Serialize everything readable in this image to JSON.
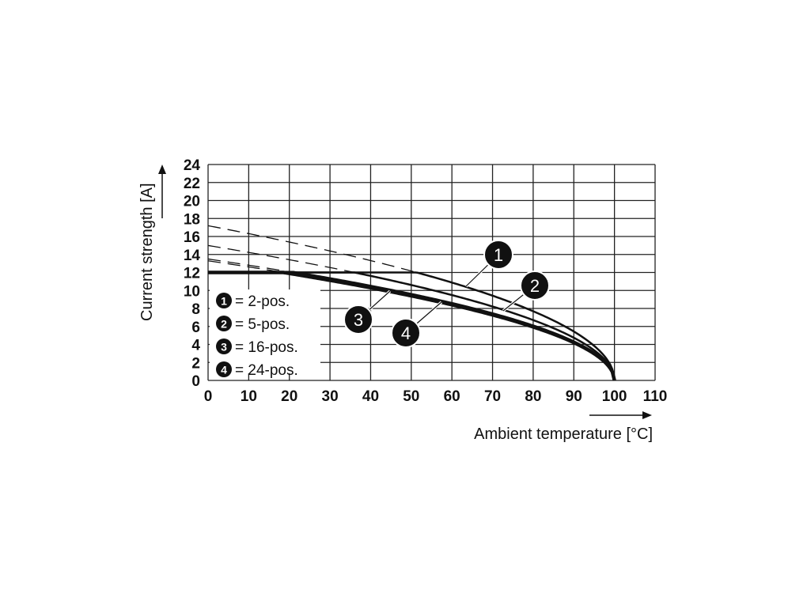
{
  "chart_data": {
    "type": "line",
    "xlabel": "Ambient temperature [°C]",
    "ylabel": "Current strength [A]",
    "xlim": [
      0,
      110
    ],
    "ylim": [
      0,
      24
    ],
    "xticks": [
      "0",
      "10",
      "20",
      "30",
      "40",
      "50",
      "60",
      "70",
      "80",
      "90",
      "100",
      "110"
    ],
    "yticks": [
      "0",
      "2",
      "4",
      "6",
      "8",
      "10",
      "12",
      "14",
      "16",
      "18",
      "20",
      "22",
      "24"
    ],
    "grid": true,
    "max_current": 12,
    "x": [
      0,
      10,
      20,
      30,
      40,
      50,
      60,
      70,
      80,
      90,
      95,
      100
    ],
    "series": [
      {
        "marker": "1",
        "name": "= 2-pos.",
        "values": [
          17.2,
          16.3,
          15.4,
          14.4,
          13.3,
          12.2,
          10.9,
          9.4,
          7.7,
          5.4,
          3.9,
          0
        ]
      },
      {
        "marker": "2",
        "name": "= 5-pos.",
        "values": [
          15.0,
          14.2,
          13.4,
          12.6,
          11.6,
          10.6,
          9.5,
          8.2,
          6.7,
          4.7,
          3.4,
          0
        ]
      },
      {
        "marker": "3",
        "name": "= 16-pos.",
        "values": [
          13.5,
          12.8,
          12.1,
          11.3,
          10.5,
          9.6,
          8.5,
          7.4,
          6.0,
          4.3,
          3.0,
          0
        ]
      },
      {
        "marker": "4",
        "name": "= 24-pos.",
        "values": [
          13.3,
          12.6,
          11.9,
          11.1,
          10.3,
          9.4,
          8.4,
          7.3,
          6.0,
          4.2,
          3.0,
          0
        ]
      }
    ],
    "legend": "bottom-left inside"
  }
}
